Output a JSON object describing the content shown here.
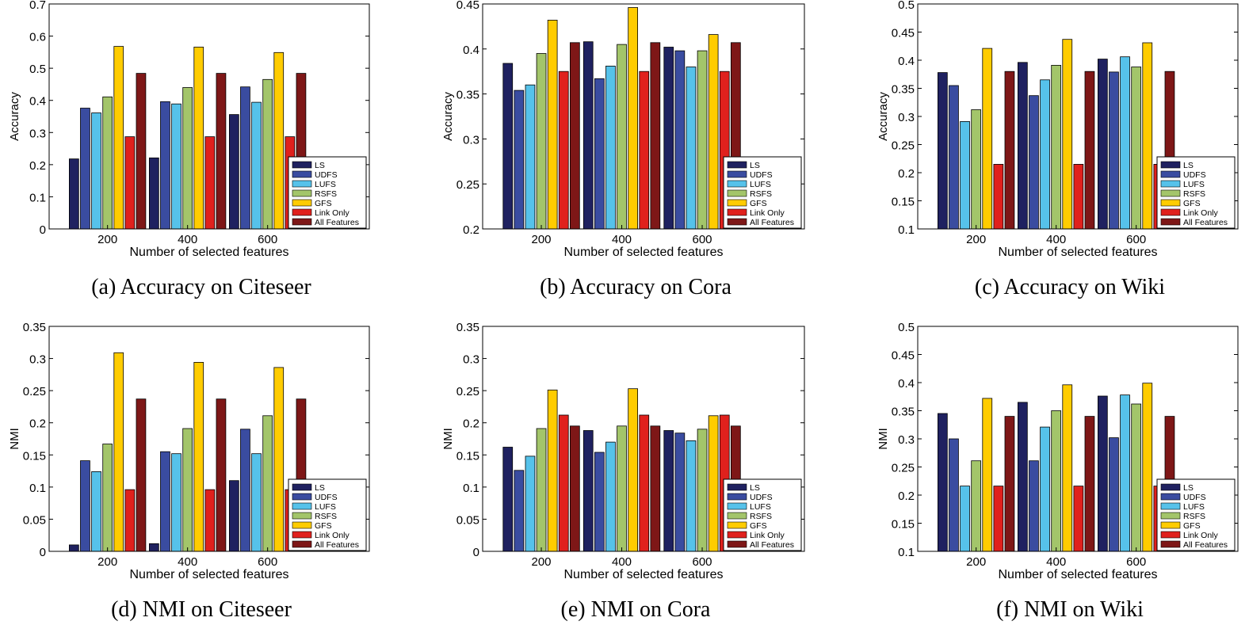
{
  "colors": {
    "LS": "#1f2160",
    "UDFS": "#3a4ca0",
    "LUFS": "#56c2ea",
    "RSFS": "#a3c56a",
    "GFS": "#ffcc00",
    "Link Only": "#e0211d",
    "All Features": "#7e1717"
  },
  "chart_data": [
    {
      "type": "bar",
      "caption": "(a) Accuracy on Citeseer",
      "xlabel": "Number of selected features",
      "ylabel": "Accuracy",
      "ylim": [
        0,
        0.7
      ],
      "yticks": [
        "0",
        "0.1",
        "0.2",
        "0.3",
        "0.4",
        "0.5",
        "0.6",
        "0.7"
      ],
      "categories": [
        "200",
        "400",
        "600"
      ],
      "legend": "bottom-right",
      "series": [
        {
          "name": "LS",
          "values": [
            0.218,
            0.221,
            0.356
          ]
        },
        {
          "name": "UDFS",
          "values": [
            0.376,
            0.396,
            0.442
          ]
        },
        {
          "name": "LUFS",
          "values": [
            0.361,
            0.389,
            0.394
          ]
        },
        {
          "name": "RSFS",
          "values": [
            0.411,
            0.44,
            0.465
          ]
        },
        {
          "name": "GFS",
          "values": [
            0.568,
            0.566,
            0.549
          ]
        },
        {
          "name": "Link Only",
          "values": [
            0.287,
            0.287,
            0.287
          ]
        },
        {
          "name": "All Features",
          "values": [
            0.484,
            0.484,
            0.484
          ]
        }
      ]
    },
    {
      "type": "bar",
      "caption": "(b) Accuracy on Cora",
      "xlabel": "Number of selected features",
      "ylabel": "Accuracy",
      "ylim": [
        0.2,
        0.45
      ],
      "yticks": [
        "0.2",
        "0.25",
        "0.3",
        "0.35",
        "0.4",
        "0.45"
      ],
      "categories": [
        "200",
        "400",
        "600"
      ],
      "legend": "bottom-right",
      "series": [
        {
          "name": "LS",
          "values": [
            0.384,
            0.408,
            0.402
          ]
        },
        {
          "name": "UDFS",
          "values": [
            0.354,
            0.367,
            0.398
          ]
        },
        {
          "name": "LUFS",
          "values": [
            0.36,
            0.381,
            0.38
          ]
        },
        {
          "name": "RSFS",
          "values": [
            0.395,
            0.405,
            0.398
          ]
        },
        {
          "name": "GFS",
          "values": [
            0.432,
            0.446,
            0.416
          ]
        },
        {
          "name": "Link Only",
          "values": [
            0.375,
            0.375,
            0.375
          ]
        },
        {
          "name": "All Features",
          "values": [
            0.407,
            0.407,
            0.407
          ]
        }
      ]
    },
    {
      "type": "bar",
      "caption": "(c) Accuracy on Wiki",
      "xlabel": "Number of selected features",
      "ylabel": "Accuracy",
      "ylim": [
        0.1,
        0.5
      ],
      "yticks": [
        "0.1",
        "0.15",
        "0.2",
        "0.25",
        "0.3",
        "0.35",
        "0.4",
        "0.45",
        "0.5"
      ],
      "categories": [
        "200",
        "400",
        "600"
      ],
      "legend": "bottom-right",
      "series": [
        {
          "name": "LS",
          "values": [
            0.378,
            0.396,
            0.402
          ]
        },
        {
          "name": "UDFS",
          "values": [
            0.355,
            0.337,
            0.379
          ]
        },
        {
          "name": "LUFS",
          "values": [
            0.291,
            0.365,
            0.406
          ]
        },
        {
          "name": "RSFS",
          "values": [
            0.312,
            0.391,
            0.388
          ]
        },
        {
          "name": "GFS",
          "values": [
            0.421,
            0.437,
            0.431
          ]
        },
        {
          "name": "Link Only",
          "values": [
            0.215,
            0.215,
            0.215
          ]
        },
        {
          "name": "All Features",
          "values": [
            0.38,
            0.38,
            0.38
          ]
        }
      ]
    },
    {
      "type": "bar",
      "caption": "(d) NMI on Citeseer",
      "xlabel": "Number of selected features",
      "ylabel": "NMI",
      "ylim": [
        0,
        0.35
      ],
      "yticks": [
        "0",
        "0.05",
        "0.1",
        "0.15",
        "0.2",
        "0.25",
        "0.3",
        "0.35"
      ],
      "categories": [
        "200",
        "400",
        "600"
      ],
      "legend": "bottom-right",
      "series": [
        {
          "name": "LS",
          "values": [
            0.01,
            0.012,
            0.11
          ]
        },
        {
          "name": "UDFS",
          "values": [
            0.141,
            0.155,
            0.19
          ]
        },
        {
          "name": "LUFS",
          "values": [
            0.124,
            0.152,
            0.152
          ]
        },
        {
          "name": "RSFS",
          "values": [
            0.167,
            0.191,
            0.211
          ]
        },
        {
          "name": "GFS",
          "values": [
            0.309,
            0.294,
            0.286
          ]
        },
        {
          "name": "Link Only",
          "values": [
            0.096,
            0.096,
            0.096
          ]
        },
        {
          "name": "All Features",
          "values": [
            0.237,
            0.237,
            0.237
          ]
        }
      ]
    },
    {
      "type": "bar",
      "caption": "(e) NMI on Cora",
      "xlabel": "Number of selected features",
      "ylabel": "NMI",
      "ylim": [
        0,
        0.35
      ],
      "yticks": [
        "0",
        "0.05",
        "0.1",
        "0.15",
        "0.2",
        "0.25",
        "0.3",
        "0.35"
      ],
      "categories": [
        "200",
        "400",
        "600"
      ],
      "legend": "bottom-right",
      "series": [
        {
          "name": "LS",
          "values": [
            0.162,
            0.188,
            0.188
          ]
        },
        {
          "name": "UDFS",
          "values": [
            0.126,
            0.154,
            0.184
          ]
        },
        {
          "name": "LUFS",
          "values": [
            0.148,
            0.17,
            0.172
          ]
        },
        {
          "name": "RSFS",
          "values": [
            0.191,
            0.195,
            0.19
          ]
        },
        {
          "name": "GFS",
          "values": [
            0.251,
            0.253,
            0.211
          ]
        },
        {
          "name": "Link Only",
          "values": [
            0.212,
            0.212,
            0.212
          ]
        },
        {
          "name": "All Features",
          "values": [
            0.195,
            0.195,
            0.195
          ]
        }
      ]
    },
    {
      "type": "bar",
      "caption": "(f) NMI on Wiki",
      "xlabel": "Number of selected features",
      "ylabel": "NMI",
      "ylim": [
        0.1,
        0.5
      ],
      "yticks": [
        "0.1",
        "0.15",
        "0.2",
        "0.25",
        "0.3",
        "0.35",
        "0.4",
        "0.45",
        "0.5"
      ],
      "categories": [
        "200",
        "400",
        "600"
      ],
      "legend": "bottom-right",
      "series": [
        {
          "name": "LS",
          "values": [
            0.345,
            0.365,
            0.376
          ]
        },
        {
          "name": "UDFS",
          "values": [
            0.3,
            0.261,
            0.302
          ]
        },
        {
          "name": "LUFS",
          "values": [
            0.216,
            0.321,
            0.378
          ]
        },
        {
          "name": "RSFS",
          "values": [
            0.261,
            0.35,
            0.362
          ]
        },
        {
          "name": "GFS",
          "values": [
            0.372,
            0.396,
            0.399
          ]
        },
        {
          "name": "Link Only",
          "values": [
            0.216,
            0.216,
            0.216
          ]
        },
        {
          "name": "All Features",
          "values": [
            0.34,
            0.34,
            0.34
          ]
        }
      ]
    }
  ]
}
